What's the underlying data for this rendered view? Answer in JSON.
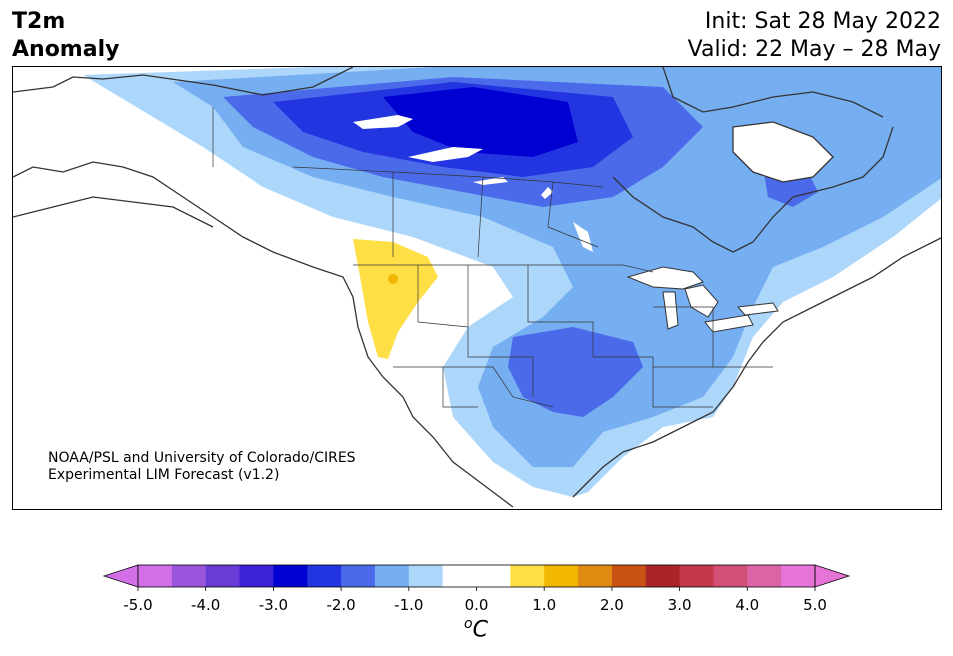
{
  "title": {
    "left_line1": "T2m",
    "left_line2": "Anomaly",
    "right_line1": "Init: Sat 28 May 2022",
    "right_line2": "Valid: 22 May – 28 May"
  },
  "credit": {
    "line1": "NOAA/PSL and University of Colorado/CIRES",
    "line2": "Experimental LIM Forecast (v1.2)"
  },
  "colorbar": {
    "unit": "oC",
    "unit_superscript": "o",
    "unit_main": "C",
    "tick_labels": [
      "-5.0",
      "-4.0",
      "-3.0",
      "-2.0",
      "-1.0",
      "0.0",
      "1.0",
      "2.0",
      "3.0",
      "4.0",
      "5.0"
    ],
    "colors": [
      "#d26ee6",
      "#9b55dc",
      "#6a3cd6",
      "#3c22d6",
      "#0000d2",
      "#2335e0",
      "#4a6aea",
      "#76aef2",
      "#acd6fa",
      "#ffffff",
      "#ffffff",
      "#fee046",
      "#f2b700",
      "#e08a12",
      "#c65214",
      "#aa2626",
      "#c2384a",
      "#d25078",
      "#dc64a6",
      "#e673d6"
    ],
    "under_color": "#d26ee6",
    "over_color": "#e673d6"
  },
  "map": {
    "region": "North America",
    "colors": {
      "light_blue": "#acd6fa",
      "mid_blue": "#76aef2",
      "blue": "#4a6aea",
      "deep_blue": "#2335e0",
      "darkest_blue": "#0000d2",
      "yellow": "#fee046",
      "orange": "#f2b700",
      "coast": "#333333"
    }
  }
}
